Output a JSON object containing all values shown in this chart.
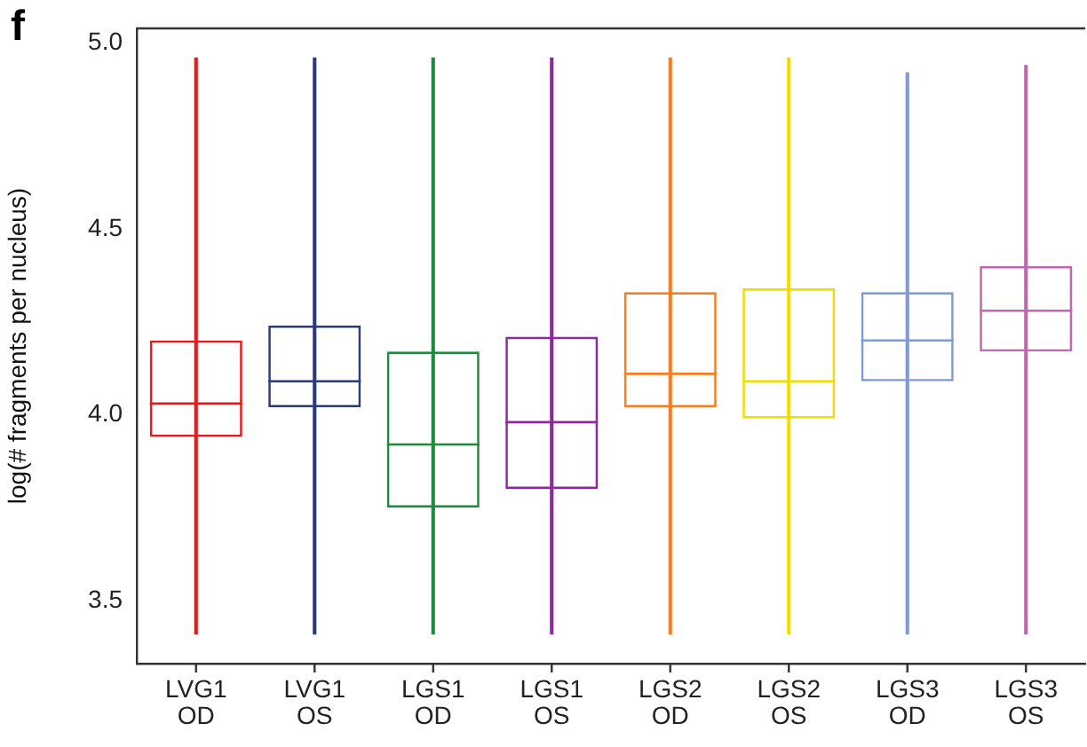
{
  "chart_data": {
    "type": "box",
    "ylabel": "log(# fragments per nucleus)",
    "annotations": [
      "f"
    ],
    "categories": [
      "LVG1\nOD",
      "LVG1\nOS",
      "LGS1\nOD",
      "LGS1\nOS",
      "LGS2\nOD",
      "LGS2\nOS",
      "LGS3\nOD",
      "LGS3\nOS"
    ],
    "colors": [
      "#e41a1c",
      "#2b3a7a",
      "#1e8a3e",
      "#8b2a9a",
      "#f57f20",
      "#f0de00",
      "#7f9ad6",
      "#c266b0"
    ],
    "boxes": [
      {
        "low": 3.41,
        "q1": 3.94,
        "median": 4.03,
        "q3": 4.2,
        "high": 4.96
      },
      {
        "low": 3.41,
        "q1": 4.02,
        "median": 4.09,
        "q3": 4.24,
        "high": 4.96
      },
      {
        "low": 3.41,
        "q1": 3.75,
        "median": 3.92,
        "q3": 4.17,
        "high": 4.96
      },
      {
        "low": 3.41,
        "q1": 3.8,
        "median": 3.98,
        "q3": 4.21,
        "high": 4.96
      },
      {
        "low": 3.41,
        "q1": 4.02,
        "median": 4.11,
        "q3": 4.33,
        "high": 4.96
      },
      {
        "low": 3.41,
        "q1": 3.99,
        "median": 4.09,
        "q3": 4.34,
        "high": 4.96
      },
      {
        "low": 3.41,
        "q1": 4.09,
        "median": 4.2,
        "q3": 4.33,
        "high": 4.92
      },
      {
        "low": 3.41,
        "q1": 4.17,
        "median": 4.28,
        "q3": 4.4,
        "high": 4.94
      }
    ],
    "ylim": [
      3.33,
      5.04
    ],
    "yticks": [
      {
        "value": 3.5,
        "label": "3.5"
      },
      {
        "value": 4,
        "label": "4.0"
      },
      {
        "value": 4.5,
        "label": "4.5"
      },
      {
        "value": 5,
        "label": "5.0"
      }
    ],
    "grid": false,
    "legend": false
  }
}
